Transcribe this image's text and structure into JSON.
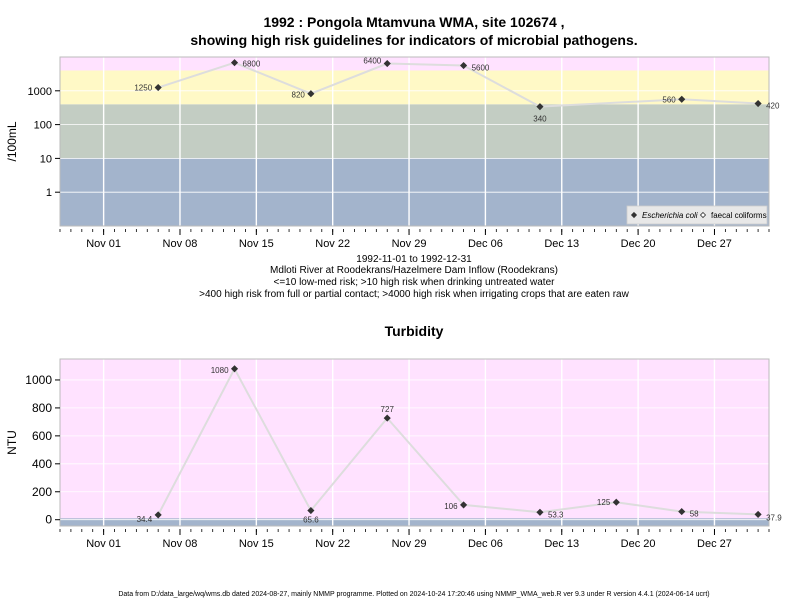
{
  "title": {
    "line1": "1992 : Pongola Mtamvuna WMA, site 102674 ,",
    "line2": "showing high risk guidelines for indicators of microbial pathogens."
  },
  "caption": {
    "line1": "1992-11-01 to 1992-12-31",
    "line2": "Mdloti River at Roodekrans/Hazelmere Dam Inflow (Roodekrans)",
    "line3": "<=10 low-med risk; >10 high risk when drinking untreated water",
    "line4": ">400 high risk from full or partial contact; >4000 high risk when irrigating crops that are eaten raw"
  },
  "footer": "Data from D:/data_large/wq/wms.db dated 2024-08-27, mainly NMMP programme. Plotted on 2024-10-24 17:20:46 using NMMP_WMA_web.R ver 9.3 under R version 4.4.1 (2024-06-14 ucrt)",
  "colors": {
    "band_low": "#a3b4cc",
    "band_mid": "#c3cdc3",
    "band_high": "#fff9c6",
    "band_top": "#ffe2ff",
    "turb_bg": "#ffe2ff",
    "line": "#dddddd",
    "point": "#333333"
  },
  "chart_data": [
    {
      "type": "line",
      "ylabel": "/100mL",
      "yscale": "log",
      "ylim": [
        0.1,
        10000
      ],
      "yticks": [
        1,
        10,
        100,
        1000
      ],
      "ytick_labels": [
        "1",
        "10",
        "100",
        "1000"
      ],
      "xlim": [
        "1992-10-28",
        "1993-01-01"
      ],
      "xticks": [
        "1992-11-01",
        "1992-11-08",
        "1992-11-15",
        "1992-11-22",
        "1992-11-29",
        "1992-12-06",
        "1992-12-13",
        "1992-12-20",
        "1992-12-27"
      ],
      "xtick_labels": [
        "Nov 01",
        "Nov 08",
        "Nov 15",
        "Nov 22",
        "Nov 29",
        "Dec 06",
        "Dec 13",
        "Dec 20",
        "Dec 27"
      ],
      "background_bands": [
        [
          0.1,
          10
        ],
        [
          10,
          400
        ],
        [
          400,
          4000
        ],
        [
          4000,
          10000
        ]
      ],
      "grid": true,
      "legend_position": "bottom-right",
      "series": [
        {
          "name": "Escherichia coli",
          "marker": "filled-diamond",
          "x": [
            "1992-11-06",
            "1992-11-13",
            "1992-11-20",
            "1992-11-27",
            "1992-12-04",
            "1992-12-11",
            "1992-12-24",
            "1992-12-31"
          ],
          "y": [
            1250,
            6800,
            820,
            6400,
            5600,
            340,
            560,
            420
          ],
          "labels": [
            "1250",
            "6800",
            "820",
            "6400",
            "5600",
            "340",
            "560",
            "420"
          ]
        },
        {
          "name": "faecal coliforms",
          "marker": "open-diamond",
          "x": [],
          "y": []
        }
      ]
    },
    {
      "type": "line",
      "title": "Turbidity",
      "ylabel": "NTU",
      "ylim": [
        -45,
        1150
      ],
      "yticks": [
        0,
        200,
        400,
        600,
        800,
        1000
      ],
      "ytick_labels": [
        "0",
        "200",
        "400",
        "600",
        "800",
        "1000"
      ],
      "xlim": [
        "1992-10-28",
        "1993-01-01"
      ],
      "xticks": [
        "1992-11-01",
        "1992-11-08",
        "1992-11-15",
        "1992-11-22",
        "1992-11-29",
        "1992-12-06",
        "1992-12-13",
        "1992-12-20",
        "1992-12-27"
      ],
      "xtick_labels": [
        "Nov 01",
        "Nov 08",
        "Nov 15",
        "Nov 22",
        "Nov 29",
        "Dec 06",
        "Dec 13",
        "Dec 20",
        "Dec 27"
      ],
      "grid": true,
      "series": [
        {
          "x": [
            "1992-11-06",
            "1992-11-13",
            "1992-11-20",
            "1992-11-27",
            "1992-12-04",
            "1992-12-11",
            "1992-12-18",
            "1992-12-24",
            "1992-12-31"
          ],
          "y": [
            34.4,
            1080,
            65.6,
            727,
            106,
            53.3,
            125,
            58,
            37.9
          ],
          "labels": [
            "34.4",
            "1080",
            "65.6",
            "727",
            "106",
            "53.3",
            "125",
            "58",
            "37.9"
          ]
        }
      ]
    }
  ]
}
